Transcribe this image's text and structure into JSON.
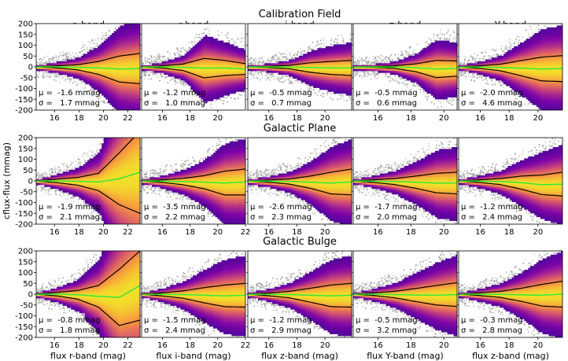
{
  "figure": {
    "ylabel": "cflux-flux (mmag)",
    "rows": [
      "Calibration Field",
      "Galactic Plane",
      "Galactic Bulge"
    ],
    "bands": [
      "g-band",
      "r-band",
      "i-band",
      "z-band",
      "Y-band"
    ],
    "xlabels": [
      "flux r-band (mag)",
      "flux i-band (mag)",
      "flux z-band (mag)",
      "flux Y-band (mag)",
      "flux z-band (mag)"
    ],
    "stats": [
      [
        {
          "mu": "-1.6",
          "sigma": "1.7"
        },
        {
          "mu": "-1.2",
          "sigma": "1.0"
        },
        {
          "mu": "-0.5",
          "sigma": "0.7"
        },
        {
          "mu": "-0.5",
          "sigma": "0.6"
        },
        {
          "mu": "-2.0",
          "sigma": "4.6"
        }
      ],
      [
        {
          "mu": "-1.9",
          "sigma": "2.1"
        },
        {
          "mu": "-3.5",
          "sigma": "2.2"
        },
        {
          "mu": "-2.6",
          "sigma": "2.3"
        },
        {
          "mu": "-1.7",
          "sigma": "2.0"
        },
        {
          "mu": "-1.2",
          "sigma": "2.4"
        }
      ],
      [
        {
          "mu": "-0.8",
          "sigma": "1.8"
        },
        {
          "mu": "-1.5",
          "sigma": "2.4"
        },
        {
          "mu": "-1.2",
          "sigma": "2.9"
        },
        {
          "mu": "-0.5",
          "sigma": "3.2"
        },
        {
          "mu": "-0.3",
          "sigma": "2.8"
        }
      ]
    ],
    "mu_label": "μ =",
    "sigma_label": "σ =",
    "unit": "mmag",
    "colors": {
      "median": "#39e639",
      "envelope": "#000000",
      "scatter": "#a9a9a9",
      "axes_bg": "#ffffff"
    }
  },
  "chart_data": {
    "type": "heatmap",
    "description_free": true,
    "ylim": [
      -200,
      200
    ],
    "yticks": [
      -200,
      -150,
      -100,
      -50,
      0,
      50,
      100,
      150,
      200
    ],
    "columns": [
      {
        "band": "g-band",
        "xlim": [
          14.5,
          23.0
        ],
        "xticks": [
          16,
          18,
          20,
          22
        ]
      },
      {
        "band": "r-band",
        "xlim": [
          14.5,
          22.0
        ],
        "xticks": [
          16,
          18,
          20,
          22
        ]
      },
      {
        "band": "i-band",
        "xlim": [
          14.5,
          21.9
        ],
        "xticks": [
          16,
          18,
          20,
          22
        ]
      },
      {
        "band": "z-band",
        "xlim": [
          14.5,
          20.8
        ],
        "xticks": [
          16,
          18,
          20
        ]
      },
      {
        "band": "Y-band",
        "xlim": [
          14.5,
          21.7
        ],
        "xticks": [
          16,
          18,
          20
        ]
      }
    ],
    "xticks_rows": [
      [
        [
          16,
          18,
          20,
          22
        ],
        [
          16,
          18,
          20
        ],
        [
          16,
          18,
          20
        ],
        [
          16,
          18,
          20
        ],
        [
          16,
          18,
          20
        ]
      ],
      [
        [
          16,
          18,
          20,
          22
        ],
        [
          16,
          18,
          20,
          22
        ],
        [
          16,
          18,
          20,
          22
        ],
        [
          16,
          18,
          20
        ],
        [
          16,
          18,
          20
        ]
      ],
      [
        [
          16,
          18,
          20,
          22
        ],
        [
          16,
          18,
          20,
          22
        ],
        [
          16,
          18,
          20
        ],
        [
          16,
          18,
          20
        ],
        [
          16,
          18,
          20
        ]
      ]
    ],
    "envelope_sigma_mmag": [
      [
        [
          0,
          5,
          12,
          30,
          60,
          70
        ],
        [
          0,
          5,
          15,
          45,
          35,
          25
        ],
        [
          0,
          3,
          8,
          22,
          30,
          35
        ],
        [
          0,
          2,
          6,
          18,
          40,
          35
        ],
        [
          0,
          6,
          15,
          35,
          55,
          60
        ]
      ],
      [
        [
          0,
          8,
          18,
          40,
          120,
          190
        ],
        [
          0,
          6,
          15,
          30,
          55,
          60
        ],
        [
          0,
          5,
          12,
          28,
          50,
          60
        ],
        [
          0,
          6,
          14,
          28,
          45,
          50
        ],
        [
          0,
          6,
          14,
          30,
          45,
          55
        ]
      ],
      [
        [
          0,
          8,
          20,
          50,
          130,
          160
        ],
        [
          0,
          7,
          17,
          35,
          50,
          55
        ],
        [
          0,
          6,
          15,
          32,
          50,
          55
        ],
        [
          0,
          6,
          15,
          30,
          45,
          55
        ],
        [
          0,
          6,
          14,
          30,
          50,
          60
        ]
      ]
    ],
    "median_offset_mmag": [
      [
        [
          0,
          0,
          -2,
          -5,
          -10,
          -8
        ],
        [
          0,
          0,
          -2,
          -6,
          -5,
          -10
        ],
        [
          0,
          0,
          -1,
          -3,
          -5,
          -5
        ],
        [
          0,
          0,
          -1,
          -4,
          -10,
          -8
        ],
        [
          0,
          -1,
          -3,
          -6,
          -10,
          -8
        ]
      ],
      [
        [
          0,
          0,
          -2,
          -5,
          10,
          40
        ],
        [
          0,
          -1,
          -3,
          -6,
          -10,
          -5
        ],
        [
          0,
          -1,
          -3,
          -6,
          -10,
          -5
        ],
        [
          0,
          -1,
          -3,
          -6,
          -10,
          -10
        ],
        [
          0,
          -1,
          -3,
          -8,
          -18,
          -15
        ]
      ],
      [
        [
          0,
          0,
          -3,
          -10,
          -15,
          40
        ],
        [
          0,
          -1,
          -2,
          -5,
          -8,
          -5
        ],
        [
          0,
          -1,
          -2,
          -5,
          -8,
          -5
        ],
        [
          0,
          0,
          -2,
          -4,
          -5,
          -2
        ],
        [
          0,
          0,
          -1,
          -3,
          -5,
          0
        ]
      ]
    ]
  }
}
